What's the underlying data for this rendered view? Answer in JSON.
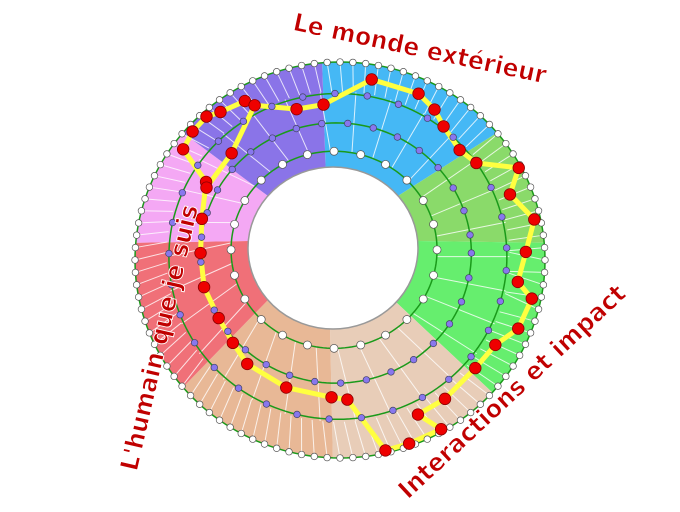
{
  "labels": {
    "top_right": "Le monde extérieur",
    "left": "L'humain que je suis",
    "bottom_right": "Interactions et impact"
  },
  "colors": {
    "label_text": "#c00000",
    "ring_line": "#1a9a1a",
    "path": "#ffff40",
    "path_node": "#ee0000",
    "inner_node": "#8877ee",
    "outer_node": "#ffffff",
    "sectors": [
      "#45b8f5",
      "#8ada6a",
      "#66ee6e",
      "#e8cdb8",
      "#e8b896",
      "#f07078",
      "#f4a8f4",
      "#8a74e8"
    ]
  }
}
